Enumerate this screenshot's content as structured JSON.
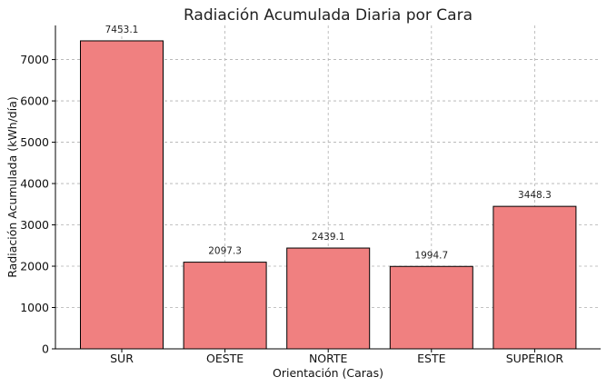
{
  "chart_data": {
    "type": "bar",
    "title": "Radiación Acumulada Diaria por Cara",
    "xlabel": "Orientación (Caras)",
    "ylabel": "Radiación Acumulada (kWh/día)",
    "categories": [
      "SUR",
      "OESTE",
      "NORTE",
      "ESTE",
      "SUPERIOR"
    ],
    "values": [
      7453.1,
      2097.3,
      2439.1,
      1994.7,
      3448.3
    ],
    "data_labels": [
      "7453.1",
      "2097.3",
      "2439.1",
      "1994.7",
      "3448.3"
    ],
    "yticks": [
      0,
      1000,
      2000,
      3000,
      4000,
      5000,
      6000,
      7000
    ],
    "ylim": [
      0,
      7826
    ],
    "grid": true,
    "bar_color": "#f08080",
    "bar_edge_color": "#000000"
  }
}
